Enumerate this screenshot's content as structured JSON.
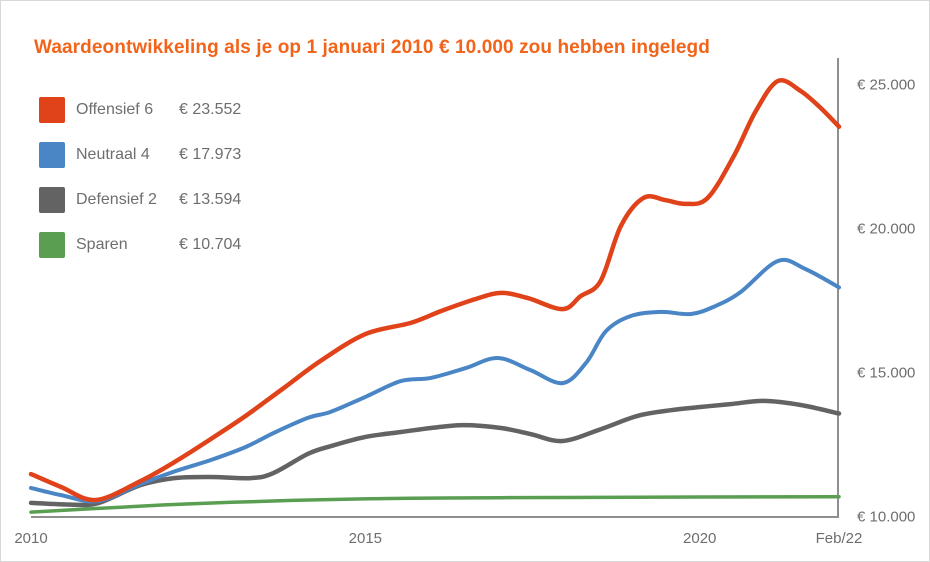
{
  "colors": {
    "title": "#f2641a",
    "axis": "#8f8f8f",
    "text": "#6e6e6e",
    "offensief": "#e0421a",
    "neutraal": "#4a86c6",
    "defensief": "#636363",
    "sparen": "#5a9e52"
  },
  "chart_data": {
    "type": "line",
    "title": "Waardeontwikkeling als je op 1 januari 2010 € 10.000 zou hebben ingelegd",
    "grid": false,
    "legend_position": "top-left",
    "x_range": [
      2010,
      2022.083
    ],
    "y_range": [
      10000,
      25000
    ],
    "x_ticks": [
      {
        "label": "2010",
        "t": 2010
      },
      {
        "label": "2015",
        "t": 2015
      },
      {
        "label": "2020",
        "t": 2020
      },
      {
        "label": "Feb/22",
        "t": 2022.083
      }
    ],
    "y_ticks": [
      {
        "label": "€ 25.000",
        "v": 25000
      },
      {
        "label": "€ 20.000",
        "v": 20000
      },
      {
        "label": "€ 15.000",
        "v": 15000
      },
      {
        "label": "€ 10.000",
        "v": 10000
      }
    ],
    "series": [
      {
        "name": "Offensief 6",
        "value_label": "€ 23.552",
        "final_value": 23552,
        "color": "#e0421a",
        "width": 4.5,
        "points": [
          [
            2010.0,
            11490
          ],
          [
            2010.45,
            11040
          ],
          [
            2010.97,
            10590
          ],
          [
            2011.64,
            11250
          ],
          [
            2012.17,
            11940
          ],
          [
            2012.69,
            12710
          ],
          [
            2013.21,
            13510
          ],
          [
            2013.78,
            14480
          ],
          [
            2014.33,
            15420
          ],
          [
            2015.0,
            16350
          ],
          [
            2015.68,
            16740
          ],
          [
            2016.13,
            17150
          ],
          [
            2016.65,
            17570
          ],
          [
            2017.03,
            17780
          ],
          [
            2017.43,
            17600
          ],
          [
            2017.95,
            17220
          ],
          [
            2018.22,
            17670
          ],
          [
            2018.52,
            18200
          ],
          [
            2018.82,
            20100
          ],
          [
            2019.16,
            21080
          ],
          [
            2019.49,
            21000
          ],
          [
            2019.79,
            20870
          ],
          [
            2020.12,
            21080
          ],
          [
            2020.51,
            22530
          ],
          [
            2020.84,
            24100
          ],
          [
            2021.17,
            25140
          ],
          [
            2021.51,
            24790
          ],
          [
            2021.81,
            24200
          ],
          [
            2022.083,
            23552
          ]
        ]
      },
      {
        "name": "Neutraal 4",
        "value_label": "€ 17.973",
        "final_value": 17973,
        "color": "#4a86c6",
        "width": 4,
        "points": [
          [
            2010.0,
            11010
          ],
          [
            2010.45,
            10760
          ],
          [
            2011.0,
            10550
          ],
          [
            2011.64,
            11150
          ],
          [
            2012.17,
            11600
          ],
          [
            2012.69,
            11980
          ],
          [
            2013.21,
            12430
          ],
          [
            2013.63,
            12920
          ],
          [
            2014.14,
            13440
          ],
          [
            2014.48,
            13650
          ],
          [
            2015.0,
            14170
          ],
          [
            2015.53,
            14720
          ],
          [
            2015.98,
            14830
          ],
          [
            2016.5,
            15170
          ],
          [
            2016.98,
            15520
          ],
          [
            2017.47,
            15100
          ],
          [
            2017.95,
            14650
          ],
          [
            2018.3,
            15350
          ],
          [
            2018.6,
            16460
          ],
          [
            2018.97,
            16980
          ],
          [
            2019.42,
            17120
          ],
          [
            2019.87,
            17050
          ],
          [
            2020.24,
            17330
          ],
          [
            2020.61,
            17810
          ],
          [
            2021.17,
            18890
          ],
          [
            2021.58,
            18610
          ],
          [
            2022.083,
            17973
          ]
        ]
      },
      {
        "name": "Defensief 2",
        "value_label": "€ 13.594",
        "final_value": 13594,
        "color": "#636363",
        "width": 4.5,
        "points": [
          [
            2010.0,
            10490
          ],
          [
            2010.6,
            10430
          ],
          [
            2011.0,
            10480
          ],
          [
            2011.64,
            11110
          ],
          [
            2012.14,
            11350
          ],
          [
            2012.69,
            11390
          ],
          [
            2013.29,
            11350
          ],
          [
            2013.63,
            11530
          ],
          [
            2014.14,
            12190
          ],
          [
            2014.48,
            12460
          ],
          [
            2015.0,
            12780
          ],
          [
            2015.53,
            12950
          ],
          [
            2015.98,
            13090
          ],
          [
            2016.47,
            13190
          ],
          [
            2017.03,
            13090
          ],
          [
            2017.47,
            12880
          ],
          [
            2017.95,
            12640
          ],
          [
            2018.52,
            13050
          ],
          [
            2019.07,
            13510
          ],
          [
            2019.57,
            13710
          ],
          [
            2020.01,
            13820
          ],
          [
            2020.46,
            13920
          ],
          [
            2020.96,
            14030
          ],
          [
            2021.51,
            13890
          ],
          [
            2022.083,
            13594
          ]
        ]
      },
      {
        "name": "Sparen",
        "value_label": "€ 10.704",
        "final_value": 10704,
        "color": "#5a9e52",
        "width": 3.5,
        "points": [
          [
            2010.0,
            10170
          ],
          [
            2011.0,
            10300
          ],
          [
            2012.0,
            10420
          ],
          [
            2013.0,
            10510
          ],
          [
            2014.33,
            10600
          ],
          [
            2015.68,
            10650
          ],
          [
            2017.0,
            10670
          ],
          [
            2018.5,
            10680
          ],
          [
            2020.0,
            10695
          ],
          [
            2022.083,
            10704
          ]
        ]
      }
    ]
  }
}
